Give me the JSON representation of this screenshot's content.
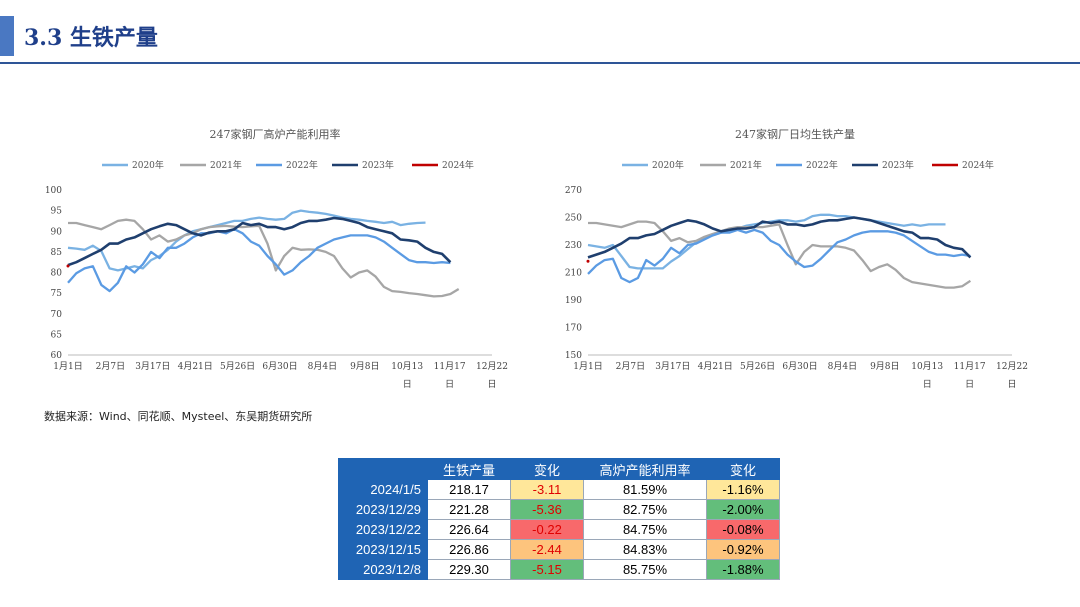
{
  "header": {
    "title": "3.3 生铁产量"
  },
  "source": "数据来源：Wind、同花顺、Mysteel、东吴期货研究所",
  "colors": {
    "y2020": "#7ab2e3",
    "y2021": "#a6a6a6",
    "y2022": "#5b9be3",
    "y2023": "#1f3f6e",
    "y2024": "#c00000"
  },
  "chart_data": [
    {
      "type": "line",
      "title": "247家钢厂高炉产能利用率",
      "ylim": [
        60,
        100
      ],
      "yticks": [
        60,
        65,
        70,
        75,
        80,
        85,
        90,
        95,
        100
      ],
      "xticks": [
        "1月1日",
        "2月7日",
        "3月17日",
        "4月21日",
        "5月26日",
        "6月30日",
        "8月4日",
        "9月8日",
        "10月13日",
        "11月17日",
        "12月22日"
      ],
      "series": [
        {
          "name": "2020年",
          "values": [
            86,
            85.8,
            85.5,
            86.5,
            85.2,
            81,
            80.5,
            81,
            81.5,
            81,
            83,
            84,
            85.5,
            87.5,
            89,
            90,
            90.5,
            91,
            91.5,
            92,
            92.5,
            92.5,
            93,
            93.3,
            93,
            92.8,
            93,
            94.5,
            95,
            94.7,
            94.5,
            94.2,
            93.8,
            93.3,
            93,
            92.8,
            92.5,
            92.3,
            92,
            92.3,
            91.5,
            91.8,
            92,
            92.1
          ]
        },
        {
          "name": "2021年",
          "values": [
            92,
            92,
            91.5,
            91,
            90.5,
            91.5,
            92.5,
            92.8,
            92.5,
            90.5,
            88,
            89,
            87.5,
            88,
            89,
            89.5,
            90.5,
            91,
            91.2,
            91.3,
            91.1,
            91,
            91.2,
            91.3,
            87,
            80.5,
            84,
            86,
            85.5,
            85.6,
            85.5,
            85,
            84,
            81,
            78.8,
            80,
            80.5,
            79,
            76.5,
            75.5,
            75.3,
            75,
            74.8,
            74.5,
            74.2,
            74.3,
            74.8,
            76
          ]
        },
        {
          "name": "2022年",
          "values": [
            77.5,
            79.8,
            81,
            81.5,
            77,
            75.5,
            77.5,
            81.5,
            80,
            82,
            85,
            83.5,
            86,
            86,
            87,
            88.5,
            89.5,
            89.5,
            90,
            89.5,
            90.5,
            89.5,
            87.5,
            86.5,
            84,
            82,
            79.5,
            80.5,
            82.5,
            84,
            86,
            87,
            88,
            88.5,
            89,
            89,
            89,
            88.5,
            87.5,
            86,
            84.5,
            83,
            82.5,
            82.5,
            82.3,
            82.5,
            82.3
          ]
        },
        {
          "name": "2023年",
          "values": [
            81.8,
            82.5,
            83.5,
            84.5,
            85.5,
            87,
            87,
            88,
            88.5,
            89.5,
            90.5,
            91.2,
            91.8,
            91.5,
            90.5,
            89.5,
            89,
            89.7,
            90,
            90,
            90.5,
            92,
            91.5,
            91.8,
            91,
            91,
            90.5,
            91,
            92,
            92.5,
            92.5,
            92.8,
            93.2,
            93,
            92.5,
            92,
            91,
            90.5,
            90,
            89.5,
            88,
            87.8,
            87.5,
            86,
            85,
            84.5,
            82.5
          ]
        },
        {
          "name": "2024年",
          "values": [
            81.59
          ]
        }
      ]
    },
    {
      "type": "line",
      "title": "247家钢厂日均生铁产量",
      "ylim": [
        150,
        270
      ],
      "yticks": [
        150,
        170,
        190,
        210,
        230,
        250,
        270
      ],
      "xticks": [
        "1月1日",
        "2月7日",
        "3月17日",
        "4月21日",
        "5月26日",
        "6月30日",
        "8月4日",
        "9月8日",
        "10月13日",
        "11月17日",
        "12月22日"
      ],
      "series": [
        {
          "name": "2020年",
          "values": [
            230,
            229,
            228,
            230,
            222,
            214,
            213,
            213,
            213,
            213,
            218,
            222,
            227,
            232,
            235,
            237,
            239,
            240,
            242,
            244,
            245,
            246,
            247,
            248,
            248,
            247,
            248,
            251,
            252,
            252,
            251,
            251,
            250,
            249,
            248,
            247,
            246,
            245,
            244,
            245,
            244,
            245,
            245,
            245
          ]
        },
        {
          "name": "2021年",
          "values": [
            246,
            246,
            245,
            244,
            243,
            245,
            247,
            247,
            246,
            240,
            233,
            235,
            232,
            233,
            236,
            238,
            240,
            242,
            243,
            243,
            243,
            243,
            244,
            245,
            230,
            216,
            225,
            230,
            229,
            229,
            229,
            228,
            226,
            219,
            211,
            214,
            216,
            212,
            206,
            203,
            202,
            201,
            200,
            199,
            199,
            200,
            204
          ]
        },
        {
          "name": "2022年",
          "values": [
            209,
            215,
            219,
            220,
            206,
            203,
            206,
            219,
            215,
            220,
            228,
            224,
            230,
            231,
            234,
            237,
            239,
            239,
            241,
            239,
            241,
            239,
            233,
            230,
            223,
            218,
            214,
            215,
            220,
            226,
            232,
            234,
            237,
            239,
            240,
            240,
            240,
            239,
            237,
            233,
            229,
            225,
            223,
            223,
            222,
            223,
            222
          ]
        },
        {
          "name": "2023年",
          "values": [
            221,
            223,
            225,
            228,
            231,
            235,
            235,
            237,
            238,
            241,
            244,
            246,
            248,
            247,
            245,
            242,
            240,
            241,
            242,
            242,
            243,
            247,
            246,
            247,
            245,
            245,
            244,
            245,
            247,
            248,
            248,
            249,
            250,
            249,
            248,
            246,
            244,
            242,
            240,
            239,
            235,
            235,
            234,
            230,
            228,
            227,
            221
          ]
        },
        {
          "name": "2024年",
          "values": [
            218.17
          ]
        }
      ]
    }
  ],
  "table": {
    "headers": [
      "",
      "生铁产量",
      "变化",
      "高炉产能利用率",
      "变化"
    ],
    "rows": [
      {
        "date": "2024/1/5",
        "output": "218.17",
        "change1": "-3.11",
        "c1": "yellow",
        "c1red": true,
        "util": "81.59%",
        "change2": "-1.16%",
        "c2": "yellow"
      },
      {
        "date": "2023/12/29",
        "output": "221.28",
        "change1": "-5.36",
        "c1": "green",
        "c1red": true,
        "util": "82.75%",
        "change2": "-2.00%",
        "c2": "green"
      },
      {
        "date": "2023/12/22",
        "output": "226.64",
        "change1": "-0.22",
        "c1": "red",
        "c1red": true,
        "util": "84.75%",
        "change2": "-0.08%",
        "c2": "red"
      },
      {
        "date": "2023/12/15",
        "output": "226.86",
        "change1": "-2.44",
        "c1": "orange",
        "c1red": true,
        "util": "84.83%",
        "change2": "-0.92%",
        "c2": "orange"
      },
      {
        "date": "2023/12/8",
        "output": "229.30",
        "change1": "-5.15",
        "c1": "green",
        "c1red": true,
        "util": "85.75%",
        "change2": "-1.88%",
        "c2": "green"
      }
    ]
  }
}
